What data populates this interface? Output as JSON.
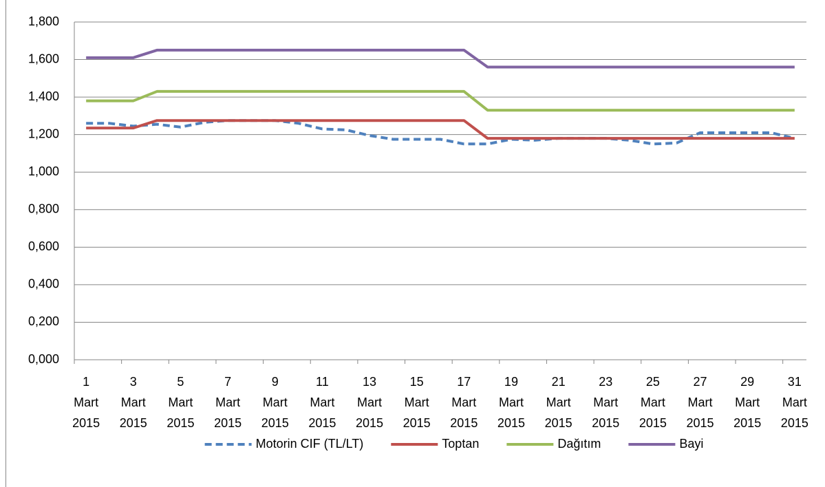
{
  "chart_data": {
    "type": "line",
    "categories": [
      "1 Mart 2015",
      null,
      "3 Mart 2015",
      null,
      "5 Mart 2015",
      null,
      "7 Mart 2015",
      null,
      "9 Mart 2015",
      null,
      "11 Mart 2015",
      null,
      "13 Mart 2015",
      null,
      "15 Mart 2015",
      null,
      "17 Mart 2015",
      null,
      "19 Mart 2015",
      null,
      "21 Mart 2015",
      null,
      "23 Mart 2015",
      null,
      "25 Mart 2015",
      null,
      "27 Mart 2015",
      null,
      "29 Mart 2015",
      null,
      "31 Mart 2015"
    ],
    "series": [
      {
        "name": "Motorin CIF (TL/LT)",
        "color": "#4f81bd",
        "dashed": true,
        "values": [
          1.26,
          1.26,
          1.245,
          1.255,
          1.24,
          1.265,
          1.275,
          1.275,
          1.275,
          1.26,
          1.23,
          1.225,
          1.195,
          1.175,
          1.175,
          1.175,
          1.15,
          1.15,
          1.175,
          1.17,
          1.18,
          1.18,
          1.18,
          1.17,
          1.15,
          1.155,
          1.21,
          1.21,
          1.21,
          1.21,
          1.18
        ]
      },
      {
        "name": "Toptan",
        "color": "#c0504d",
        "values": [
          1.235,
          1.235,
          1.235,
          1.275,
          1.275,
          1.275,
          1.275,
          1.275,
          1.275,
          1.275,
          1.275,
          1.275,
          1.275,
          1.275,
          1.275,
          1.275,
          1.275,
          1.18,
          1.18,
          1.18,
          1.18,
          1.18,
          1.18,
          1.18,
          1.18,
          1.18,
          1.18,
          1.18,
          1.18,
          1.18,
          1.18
        ]
      },
      {
        "name": "Dağıtım",
        "color": "#9bbb59",
        "values": [
          1.38,
          1.38,
          1.38,
          1.43,
          1.43,
          1.43,
          1.43,
          1.43,
          1.43,
          1.43,
          1.43,
          1.43,
          1.43,
          1.43,
          1.43,
          1.43,
          1.43,
          1.33,
          1.33,
          1.33,
          1.33,
          1.33,
          1.33,
          1.33,
          1.33,
          1.33,
          1.33,
          1.33,
          1.33,
          1.33,
          1.33
        ]
      },
      {
        "name": "Bayi",
        "color": "#8064a2",
        "values": [
          1.61,
          1.61,
          1.61,
          1.65,
          1.65,
          1.65,
          1.65,
          1.65,
          1.65,
          1.65,
          1.65,
          1.65,
          1.65,
          1.65,
          1.65,
          1.65,
          1.65,
          1.56,
          1.56,
          1.56,
          1.56,
          1.56,
          1.56,
          1.56,
          1.56,
          1.56,
          1.56,
          1.56,
          1.56,
          1.56,
          1.56
        ]
      }
    ],
    "ylim": [
      0,
      1.8
    ],
    "yticks": [
      {
        "value": 0,
        "label": "0,000"
      },
      {
        "value": 0.2,
        "label": "0,200"
      },
      {
        "value": 0.4,
        "label": "0,400"
      },
      {
        "value": 0.6,
        "label": "0,600"
      },
      {
        "value": 0.8,
        "label": "0,800"
      },
      {
        "value": 1.0,
        "label": "1,000"
      },
      {
        "value": 1.2,
        "label": "1,200"
      },
      {
        "value": 1.4,
        "label": "1,400"
      },
      {
        "value": 1.6,
        "label": "1,600"
      },
      {
        "value": 1.8,
        "label": "1,800"
      }
    ],
    "grid": true,
    "legend": "bottom"
  }
}
